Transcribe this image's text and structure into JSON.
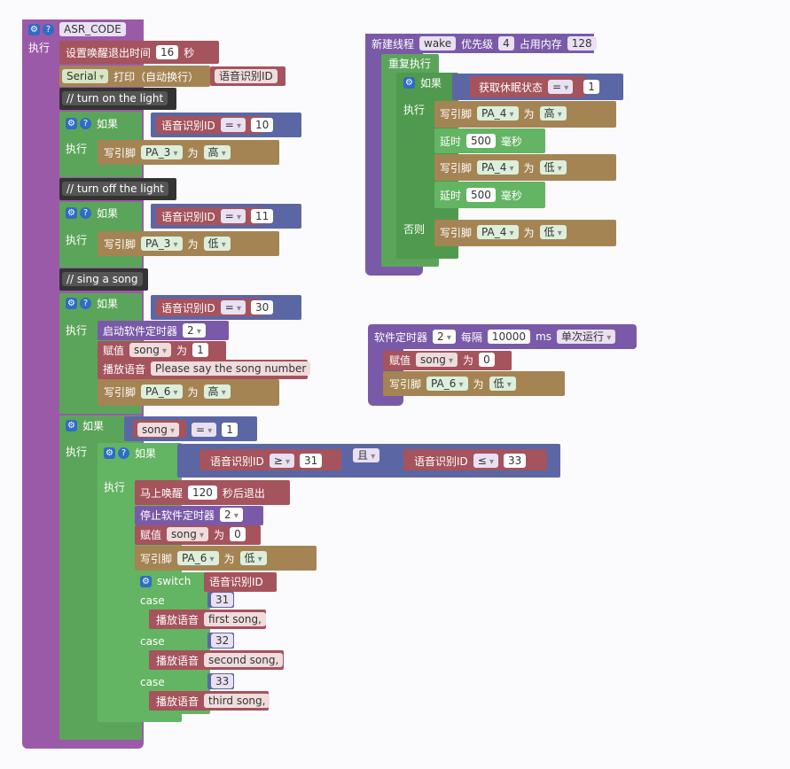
{
  "main": {
    "title": "ASR_CODE",
    "exec": "执行",
    "wake_set": {
      "label": "设置唤醒退出时间",
      "value": "16",
      "unit": "秒"
    },
    "serial": {
      "port": "Serial",
      "label": "打印（自动换行）",
      "var": "语音识别ID"
    },
    "c1": "// turn on the light",
    "if1": {
      "label": "如果",
      "var": "语音识别ID",
      "op": "=",
      "val": "10",
      "exec": "执行",
      "write": "写引脚",
      "pin": "PA_3",
      "as": "为",
      "level": "高"
    },
    "c2": "// turn off the light",
    "if2": {
      "label": "如果",
      "var": "语音识别ID",
      "op": "=",
      "val": "11",
      "exec": "执行",
      "write": "写引脚",
      "pin": "PA_3",
      "as": "为",
      "level": "低"
    },
    "c3": "// sing a song",
    "if3": {
      "label": "如果",
      "var": "语音识别ID",
      "op": "=",
      "val": "30",
      "exec": "执行",
      "timer": {
        "label": "启动软件定时器",
        "val": "2"
      },
      "assign": {
        "label": "赋值",
        "var": "song",
        "as": "为",
        "val": "1"
      },
      "play": {
        "label": "播放语音",
        "text": "Please say the song number"
      },
      "write": "写引脚",
      "pin": "PA_6",
      "as": "为",
      "level": "高"
    },
    "if4": {
      "label": "如果",
      "var": "song",
      "op": "=",
      "val": "1",
      "exec": "执行",
      "inner": {
        "label": "如果",
        "var1": "语音识别ID",
        "op1": "≥",
        "val1": "31",
        "and": "且",
        "var2": "语音识别ID",
        "op2": "≤",
        "val2": "33",
        "exec": "执行"
      },
      "wake": {
        "label": "马上唤醒",
        "val": "120",
        "unit": "秒后退出"
      },
      "stop": {
        "label": "停止软件定时器",
        "val": "2"
      },
      "assign": {
        "label": "赋值",
        "var": "song",
        "as": "为",
        "val": "0"
      },
      "write": {
        "label": "写引脚",
        "pin": "PA_6",
        "as": "为",
        "level": "低"
      },
      "switch": {
        "label": "switch",
        "var": "语音识别ID"
      },
      "cases": [
        {
          "label": "case",
          "val": "31",
          "play": "播放语音",
          "text": "first song,"
        },
        {
          "label": "case",
          "val": "32",
          "play": "播放语音",
          "text": "second song,"
        },
        {
          "label": "case",
          "val": "33",
          "play": "播放语音",
          "text": "third song,"
        }
      ]
    }
  },
  "thread": {
    "label": "新建线程",
    "name": "wake",
    "prio_label": "优先级",
    "prio": "4",
    "mem_label": "占用内存",
    "mem": "128",
    "repeat": "重复执行",
    "if": {
      "label": "如果",
      "var": "获取休眠状态",
      "op": "=",
      "val": "1",
      "exec": "执行",
      "else": "否则"
    },
    "w1": {
      "label": "写引脚",
      "pin": "PA_4",
      "as": "为",
      "level": "高"
    },
    "d1": {
      "label": "延时",
      "val": "500",
      "unit": "毫秒"
    },
    "w2": {
      "label": "写引脚",
      "pin": "PA_4",
      "as": "为",
      "level": "低"
    },
    "d2": {
      "label": "延时",
      "val": "500",
      "unit": "毫秒"
    },
    "w3": {
      "label": "写引脚",
      "pin": "PA_4",
      "as": "为",
      "level": "低"
    }
  },
  "timer": {
    "label": "软件定时器",
    "id": "2",
    "every": "每隔",
    "ms": "10000",
    "unit": "ms",
    "mode": "单次运行",
    "assign": {
      "label": "赋值",
      "var": "song",
      "as": "为",
      "val": "0"
    },
    "write": {
      "label": "写引脚",
      "pin": "PA_6",
      "as": "为",
      "level": "低"
    }
  },
  "colors": {
    "event": "#9b5aa8",
    "control": "#5ba55b",
    "logic": "#5b67a5",
    "variable": "#a5535c",
    "io": "#a58454"
  }
}
